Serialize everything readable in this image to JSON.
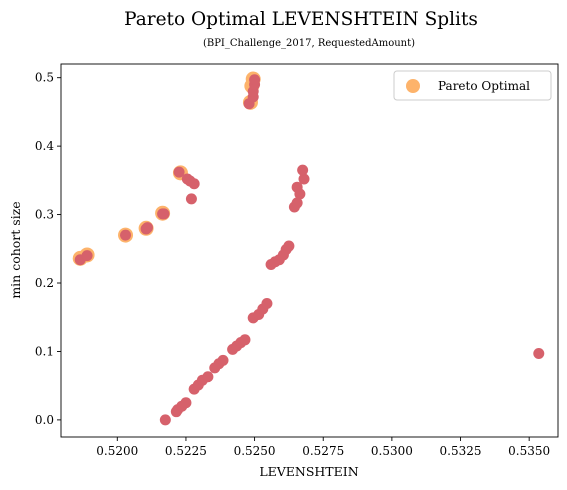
{
  "chart_data": {
    "type": "scatter",
    "title": "Pareto Optimal LEVENSHTEIN Splits",
    "subtitle": "(BPI_Challenge_2017, RequestedAmount)",
    "xlabel": "LEVENSHTEIN",
    "ylabel": "min cohort size",
    "xlim": [
      0.51795,
      0.53605
    ],
    "ylim": [
      -0.025,
      0.52
    ],
    "xticks": [
      0.52,
      0.5225,
      0.525,
      0.5275,
      0.53,
      0.5325,
      0.535
    ],
    "xtick_labels": [
      "0.5200",
      "0.5225",
      "0.5250",
      "0.5275",
      "0.5300",
      "0.5325",
      "0.5350"
    ],
    "yticks": [
      0.0,
      0.1,
      0.2,
      0.3,
      0.4,
      0.5
    ],
    "ytick_labels": [
      "0.0",
      "0.1",
      "0.2",
      "0.3",
      "0.4",
      "0.5"
    ],
    "grid": false,
    "legend": {
      "position": "top-right",
      "entries": [
        "Pareto Optimal"
      ]
    },
    "colors": {
      "pareto": "#fdb36b",
      "all": "#d6616b"
    },
    "series": [
      {
        "name": "Pareto Optimal",
        "points": [
          [
            0.51865,
            0.236
          ],
          [
            0.5189,
            0.241
          ],
          [
            0.5203,
            0.27
          ],
          [
            0.52105,
            0.28
          ],
          [
            0.52165,
            0.302
          ],
          [
            0.5223,
            0.361
          ],
          [
            0.52485,
            0.464
          ],
          [
            0.5249,
            0.488
          ],
          [
            0.52495,
            0.498
          ]
        ]
      },
      {
        "points": [
          [
            0.51865,
            0.234
          ],
          [
            0.5189,
            0.24
          ],
          [
            0.5203,
            0.27
          ],
          [
            0.52105,
            0.279
          ],
          [
            0.5211,
            0.281
          ],
          [
            0.52165,
            0.301
          ],
          [
            0.5217,
            0.301
          ],
          [
            0.52225,
            0.362
          ],
          [
            0.52255,
            0.352
          ],
          [
            0.52265,
            0.349
          ],
          [
            0.5228,
            0.345
          ],
          [
            0.5227,
            0.323
          ],
          [
            0.5248,
            0.462
          ],
          [
            0.52495,
            0.472
          ],
          [
            0.52495,
            0.48
          ],
          [
            0.525,
            0.49
          ],
          [
            0.525,
            0.497
          ],
          [
            0.52175,
            0.0
          ],
          [
            0.52215,
            0.012
          ],
          [
            0.5222,
            0.015
          ],
          [
            0.52235,
            0.02
          ],
          [
            0.5225,
            0.025
          ],
          [
            0.5228,
            0.045
          ],
          [
            0.52295,
            0.051
          ],
          [
            0.5231,
            0.058
          ],
          [
            0.5233,
            0.063
          ],
          [
            0.52355,
            0.076
          ],
          [
            0.5237,
            0.082
          ],
          [
            0.52385,
            0.087
          ],
          [
            0.5242,
            0.103
          ],
          [
            0.52435,
            0.108
          ],
          [
            0.5245,
            0.113
          ],
          [
            0.52465,
            0.117
          ],
          [
            0.52495,
            0.149
          ],
          [
            0.52515,
            0.154
          ],
          [
            0.5253,
            0.162
          ],
          [
            0.52545,
            0.17
          ],
          [
            0.5256,
            0.227
          ],
          [
            0.52575,
            0.231
          ],
          [
            0.5259,
            0.234
          ],
          [
            0.52605,
            0.241
          ],
          [
            0.52615,
            0.249
          ],
          [
            0.52625,
            0.254
          ],
          [
            0.52645,
            0.311
          ],
          [
            0.52655,
            0.317
          ],
          [
            0.52665,
            0.33
          ],
          [
            0.52655,
            0.34
          ],
          [
            0.5268,
            0.352
          ],
          [
            0.52675,
            0.365
          ],
          [
            0.53535,
            0.097
          ]
        ]
      }
    ]
  }
}
